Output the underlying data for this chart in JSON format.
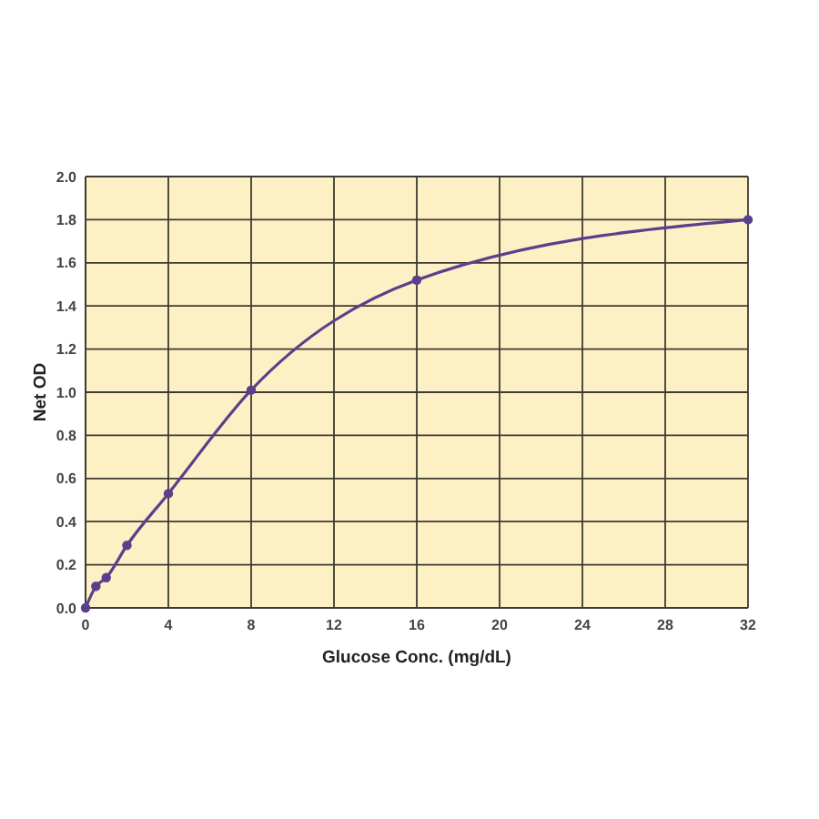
{
  "chart_data": {
    "type": "line",
    "xlabel": "Glucose Conc. (mg/dL)",
    "ylabel": "Net OD",
    "x": [
      0,
      0.5,
      1,
      2,
      4,
      8,
      16,
      32
    ],
    "series": [
      {
        "color": "#5b3f8c",
        "values": [
          0,
          0.1,
          0.14,
          0.29,
          0.53,
          1.01,
          1.52,
          1.8
        ]
      }
    ],
    "xlim": [
      0,
      32
    ],
    "xticks": [
      0,
      4,
      8,
      12,
      16,
      20,
      24,
      28,
      32
    ],
    "ylim": [
      0,
      2.0
    ],
    "yticks": [
      {
        "value": 0,
        "label": "0.0"
      },
      {
        "value": 0.2,
        "label": "0.2"
      },
      {
        "value": 0.4,
        "label": "0.4"
      },
      {
        "value": 0.6,
        "label": "0.6"
      },
      {
        "value": 0.8,
        "label": "0.8"
      },
      {
        "value": 1.0,
        "label": "1.0"
      },
      {
        "value": 1.2,
        "label": "1.2"
      },
      {
        "value": 1.4,
        "label": "1.4"
      },
      {
        "value": 1.6,
        "label": "1.6"
      },
      {
        "value": 1.8,
        "label": "1.8"
      },
      {
        "value": 2.0,
        "label": "2.0"
      }
    ],
    "grid": true,
    "marker": "circle",
    "line_style": "solid"
  }
}
